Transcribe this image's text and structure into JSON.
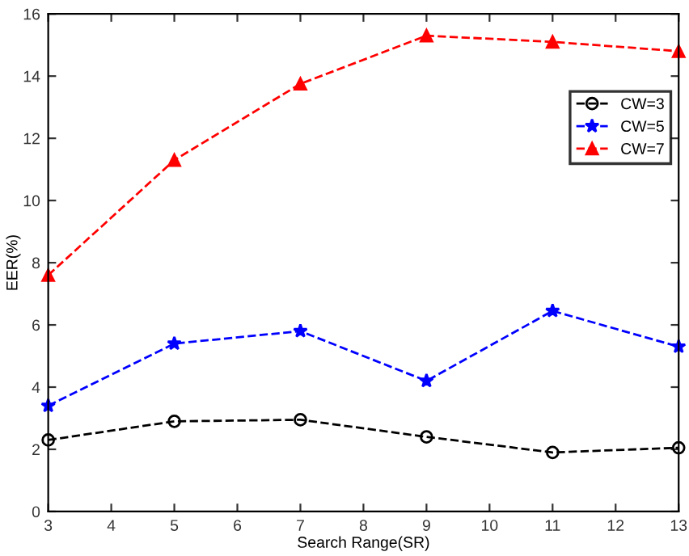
{
  "chart_data": {
    "type": "line",
    "xlabel": "Search Range(SR)",
    "ylabel": "EER(%)",
    "x": [
      3,
      5,
      7,
      9,
      11,
      13
    ],
    "xlim": [
      3,
      13
    ],
    "xticks": [
      3,
      4,
      5,
      6,
      7,
      8,
      9,
      10,
      11,
      12,
      13
    ],
    "ylim": [
      0,
      16
    ],
    "yticks": [
      0,
      2,
      4,
      6,
      8,
      10,
      12,
      14,
      16
    ],
    "line_style": "dashed",
    "legend": "top right",
    "grid": false,
    "series": [
      {
        "name": "CW=3",
        "color": "#000000",
        "marker": "circle",
        "values": [
          2.3,
          2.9,
          2.95,
          2.4,
          1.9,
          2.05
        ]
      },
      {
        "name": "CW=5",
        "color": "#0000ff",
        "marker": "star",
        "values": [
          3.4,
          5.4,
          5.8,
          4.2,
          6.45,
          5.3
        ]
      },
      {
        "name": "CW=7",
        "color": "#ff0000",
        "marker": "triangle",
        "values": [
          7.6,
          11.3,
          13.75,
          15.3,
          15.1,
          14.8
        ]
      }
    ]
  }
}
